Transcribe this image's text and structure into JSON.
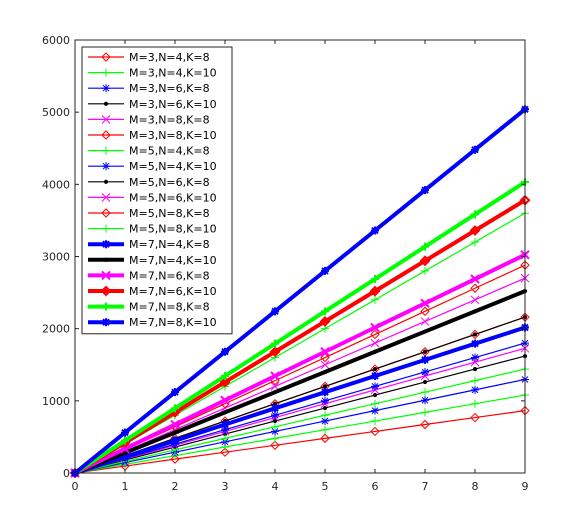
{
  "chart_data": {
    "type": "line",
    "x": [
      0,
      1,
      2,
      3,
      4,
      5,
      6,
      7,
      8,
      9
    ],
    "xlim": [
      0,
      9
    ],
    "ylim": [
      0,
      6000
    ],
    "xticks": [
      "0",
      "1",
      "2",
      "3",
      "4",
      "5",
      "6",
      "7",
      "8",
      "9"
    ],
    "yticks": [
      "0",
      "1000",
      "2000",
      "3000",
      "4000",
      "5000",
      "6000"
    ],
    "title": "",
    "xlabel": "",
    "ylabel": "",
    "grid": false,
    "legend_position": "top-left",
    "series": [
      {
        "name": "M=3,N=4,K=8",
        "color": "#ff0000",
        "marker": "diamond",
        "thick": false,
        "slope": 96
      },
      {
        "name": "M=3,N=4,K=10",
        "color": "#00ff00",
        "marker": "plus",
        "thick": false,
        "slope": 120
      },
      {
        "name": "M=3,N=6,K=8",
        "color": "#0000ff",
        "marker": "star",
        "thick": false,
        "slope": 144
      },
      {
        "name": "M=3,N=6,K=10",
        "color": "#000000",
        "marker": "point",
        "thick": false,
        "slope": 180
      },
      {
        "name": "M=3,N=8,K=8",
        "color": "#ff00ff",
        "marker": "cross",
        "thick": false,
        "slope": 192
      },
      {
        "name": "M=3,N=8,K=10",
        "color": "#ff0000",
        "marker": "diamond",
        "thick": false,
        "slope": 240
      },
      {
        "name": "M=5,N=4,K=8",
        "color": "#00ff00",
        "marker": "plus",
        "thick": false,
        "slope": 160
      },
      {
        "name": "M=5,N=4,K=10",
        "color": "#0000ff",
        "marker": "star",
        "thick": false,
        "slope": 200
      },
      {
        "name": "M=5,N=6,K=8",
        "color": "#000000",
        "marker": "point",
        "thick": false,
        "slope": 240
      },
      {
        "name": "M=5,N=6,K=10",
        "color": "#ff00ff",
        "marker": "cross",
        "thick": false,
        "slope": 300
      },
      {
        "name": "M=5,N=8,K=8",
        "color": "#ff0000",
        "marker": "diamond",
        "thick": false,
        "slope": 320
      },
      {
        "name": "M=5,N=8,K=10",
        "color": "#00ff00",
        "marker": "plus",
        "thick": false,
        "slope": 400
      },
      {
        "name": "M=7,N=4,K=8",
        "color": "#0000ff",
        "marker": "star",
        "thick": true,
        "slope": 224
      },
      {
        "name": "M=7,N=4,K=10",
        "color": "#000000",
        "marker": "point",
        "thick": true,
        "slope": 280
      },
      {
        "name": "M=7,N=6,K=8",
        "color": "#ff00ff",
        "marker": "cross",
        "thick": true,
        "slope": 336
      },
      {
        "name": "M=7,N=6,K=10",
        "color": "#ff0000",
        "marker": "diamond",
        "thick": true,
        "slope": 420
      },
      {
        "name": "M=7,N=8,K=8",
        "color": "#00ff00",
        "marker": "plus",
        "thick": true,
        "slope": 448
      },
      {
        "name": "M=7,N=8,K=10",
        "color": "#0000ff",
        "marker": "star",
        "thick": true,
        "slope": 560
      }
    ]
  }
}
